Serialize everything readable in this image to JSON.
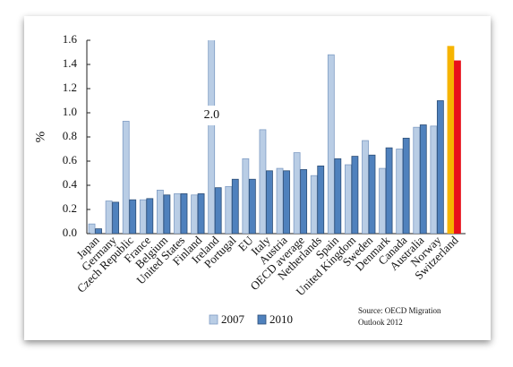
{
  "chart_data": {
    "type": "bar",
    "y_label": "%",
    "categories": [
      "Japan",
      "Germany",
      "Czech Republic",
      "France",
      "Belgium",
      "United States",
      "Finland",
      "Ireland",
      "Portugal",
      "EU",
      "Italy",
      "Austria",
      "OECD average",
      "Netherlands",
      "Spain",
      "United Kingdom",
      "Sweden",
      "Denmark",
      "Canada",
      "Australia",
      "Norway",
      "Switzerland"
    ],
    "series": [
      {
        "name": "2007",
        "color": "#b9cde5",
        "stroke": "#7f9cc4",
        "highlight_color": "#f6b400",
        "values": [
          0.08,
          0.27,
          0.93,
          0.28,
          0.36,
          0.33,
          0.32,
          2.0,
          0.39,
          0.62,
          0.86,
          0.54,
          0.67,
          0.48,
          1.48,
          0.57,
          0.77,
          0.54,
          0.7,
          0.88,
          0.89,
          1.55
        ],
        "value_labels": [
          null,
          null,
          null,
          null,
          null,
          null,
          null,
          "2.0",
          null,
          null,
          null,
          null,
          null,
          null,
          null,
          null,
          null,
          null,
          null,
          null,
          null,
          null
        ]
      },
      {
        "name": "2010",
        "color": "#4f81bd",
        "stroke": "#2c4d75",
        "highlight_color": "#e8101a",
        "values": [
          0.04,
          0.26,
          0.28,
          0.29,
          0.32,
          0.33,
          0.33,
          0.38,
          0.45,
          0.45,
          0.52,
          0.52,
          0.53,
          0.56,
          0.62,
          0.64,
          0.65,
          0.71,
          0.79,
          0.9,
          1.1,
          1.43
        ]
      }
    ],
    "highlight_category": "Switzerland",
    "ylim": [
      0,
      1.6
    ],
    "yticks": [
      {
        "value": 0,
        "label": "0.0"
      },
      {
        "value": 0.2,
        "label": "0.2"
      },
      {
        "value": 0.4,
        "label": "0.4"
      },
      {
        "value": 0.6,
        "label": "0.6"
      },
      {
        "value": 0.8,
        "label": "0.8"
      },
      {
        "value": 1.0,
        "label": "1.0"
      },
      {
        "value": 1.2,
        "label": "1.2"
      },
      {
        "value": 1.4,
        "label": "1.4"
      },
      {
        "value": 1.6,
        "label": "1.6"
      }
    ],
    "source": [
      "Source: OECD Migration",
      "Outlook 2012"
    ]
  }
}
